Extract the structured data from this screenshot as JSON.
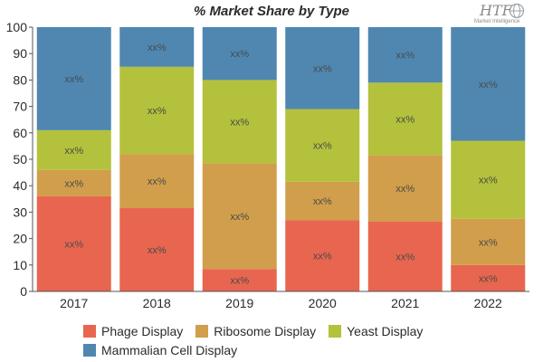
{
  "title": "% Market Share by Type",
  "logo": {
    "main": "HTF",
    "sub": "Market Intelligence"
  },
  "chart_data": {
    "type": "bar",
    "stacked": true,
    "title": "% Market Share by Type",
    "xlabel": "",
    "ylabel": "",
    "ylim": [
      0,
      100
    ],
    "yticks": [
      0,
      10,
      20,
      30,
      40,
      50,
      60,
      70,
      80,
      90,
      100
    ],
    "grid": false,
    "legend_position": "bottom",
    "categories": [
      "2017",
      "2018",
      "2019",
      "2020",
      "2021",
      "2022"
    ],
    "series": [
      {
        "name": "Phage Display",
        "color": "#e8664f",
        "values": [
          36,
          31.5,
          8.5,
          27,
          26.5,
          10
        ],
        "labels": [
          "xx%",
          "xx%",
          "xx%",
          "xx%",
          "xx%",
          "xx%"
        ]
      },
      {
        "name": "Ribosome Display",
        "color": "#d19e4b",
        "values": [
          10,
          20.5,
          40,
          14.5,
          25,
          17.5
        ],
        "labels": [
          "xx%",
          "xx%",
          "xx%",
          "xx%",
          "xx%",
          "xx%"
        ]
      },
      {
        "name": "Yeast Display",
        "color": "#b4c13c",
        "values": [
          15,
          33,
          31.5,
          27.5,
          27.5,
          29.5
        ],
        "labels": [
          "xx%",
          "xx%",
          "xx%",
          "xx%",
          "xx%",
          "xx%"
        ]
      },
      {
        "name": "Mammalian Cell Display",
        "color": "#4f87b1",
        "values": [
          39,
          15,
          20,
          31,
          21,
          43
        ],
        "labels": [
          "xx%",
          "xx%",
          "xx%",
          "xx%",
          "xx%",
          "xx%"
        ]
      }
    ]
  }
}
